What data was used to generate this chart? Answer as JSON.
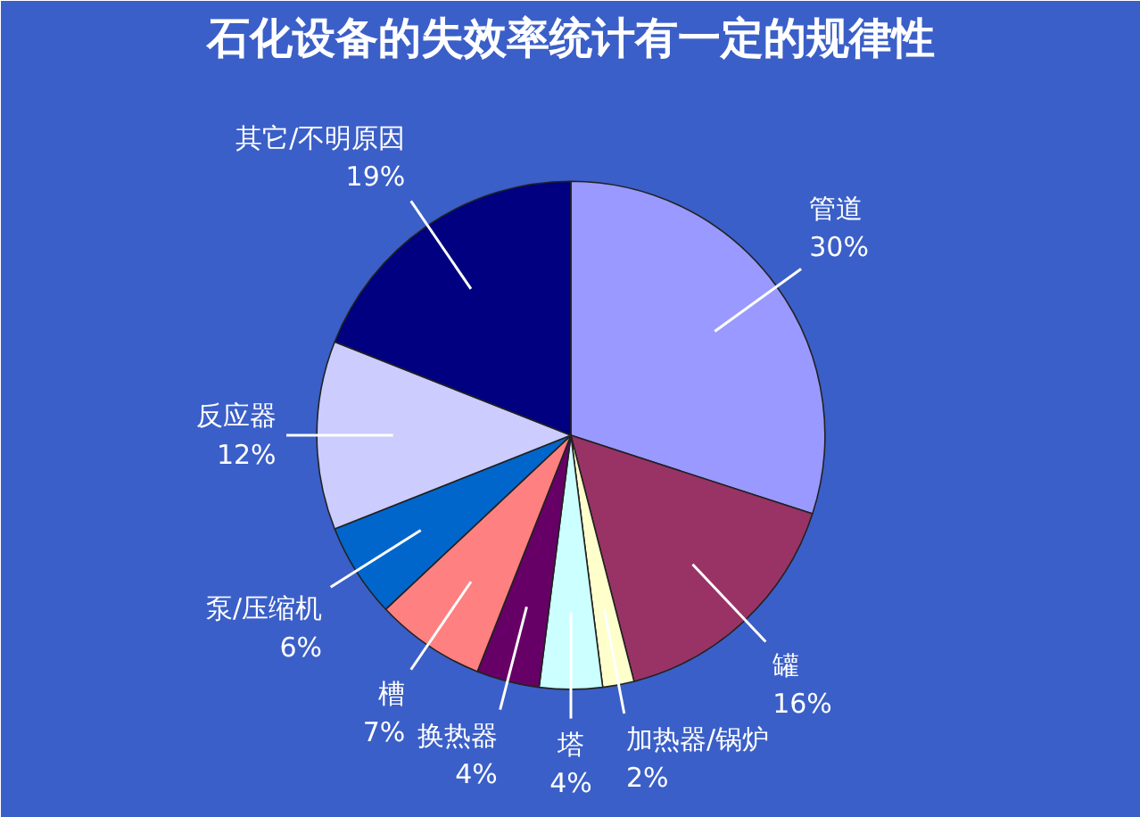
{
  "chart_data": {
    "type": "pie",
    "title": "石化设备的失效率统计有一定的规律性",
    "categories": [
      "管道",
      "罐",
      "加热器/锅炉",
      "塔",
      "换热器",
      "槽",
      "泵/压缩机",
      "反应器",
      "其它/不明原因"
    ],
    "values": [
      30,
      16,
      2,
      4,
      4,
      7,
      6,
      12,
      19
    ],
    "value_labels": [
      "30%",
      "16%",
      "2%",
      "4%",
      "4%",
      "7%",
      "6%",
      "12%",
      "19%"
    ],
    "colors": [
      "#9999ff",
      "#993366",
      "#ffffcc",
      "#ccffff",
      "#660066",
      "#ff8080",
      "#0066cc",
      "#ccccff",
      "#000080"
    ]
  }
}
